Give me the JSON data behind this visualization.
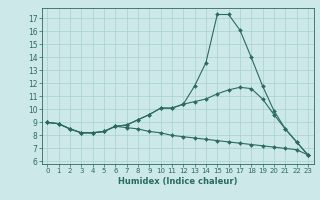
{
  "xlabel": "Humidex (Indice chaleur)",
  "background_color": "#cce8e8",
  "grid_color": "#a8d0d0",
  "line_color": "#2a6b60",
  "xlim": [
    -0.5,
    23.5
  ],
  "ylim": [
    5.8,
    17.8
  ],
  "xticks": [
    0,
    1,
    2,
    3,
    4,
    5,
    6,
    7,
    8,
    9,
    10,
    11,
    12,
    13,
    14,
    15,
    16,
    17,
    18,
    19,
    20,
    21,
    22,
    23
  ],
  "yticks": [
    6,
    7,
    8,
    9,
    10,
    11,
    12,
    13,
    14,
    15,
    16,
    17
  ],
  "line1_x": [
    0,
    1,
    2,
    3,
    4,
    5,
    6,
    7,
    8,
    9,
    10,
    11,
    12,
    13,
    14,
    15,
    16,
    17,
    18,
    19,
    20,
    21,
    22,
    23
  ],
  "line1_y": [
    9.0,
    8.9,
    8.5,
    8.2,
    8.2,
    8.3,
    8.7,
    8.8,
    9.2,
    9.6,
    10.1,
    10.1,
    10.4,
    11.8,
    13.6,
    17.3,
    17.3,
    16.1,
    14.0,
    11.8,
    9.9,
    8.5,
    7.5,
    6.5
  ],
  "line2_x": [
    0,
    1,
    2,
    3,
    4,
    5,
    6,
    7,
    8,
    9,
    10,
    11,
    12,
    13,
    14,
    15,
    16,
    17,
    18,
    19,
    20,
    21,
    22,
    23
  ],
  "line2_y": [
    9.0,
    8.9,
    8.5,
    8.2,
    8.2,
    8.3,
    8.7,
    8.8,
    9.2,
    9.6,
    10.1,
    10.1,
    10.4,
    10.6,
    10.8,
    11.2,
    11.5,
    11.7,
    11.6,
    10.8,
    9.6,
    8.5,
    7.5,
    6.5
  ],
  "line3_x": [
    0,
    1,
    2,
    3,
    4,
    5,
    6,
    7,
    8,
    9,
    10,
    11,
    12,
    13,
    14,
    15,
    16,
    17,
    18,
    19,
    20,
    21,
    22,
    23
  ],
  "line3_y": [
    9.0,
    8.9,
    8.5,
    8.2,
    8.2,
    8.3,
    8.7,
    8.6,
    8.5,
    8.3,
    8.2,
    8.0,
    7.9,
    7.8,
    7.7,
    7.6,
    7.5,
    7.4,
    7.3,
    7.2,
    7.1,
    7.0,
    6.9,
    6.5
  ]
}
